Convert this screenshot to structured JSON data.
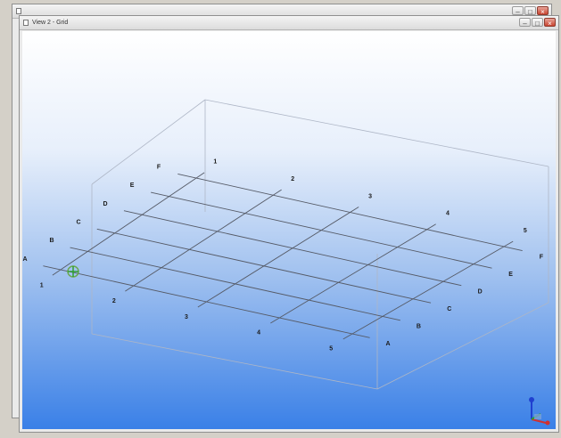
{
  "back_window": {
    "title": ""
  },
  "window": {
    "title": "View 2 - Grid"
  },
  "grid": {
    "letters": [
      "A",
      "B",
      "C",
      "D",
      "E",
      "F"
    ],
    "numbers": [
      "1",
      "2",
      "3",
      "4",
      "5"
    ]
  },
  "colors": {
    "grid_line": "#555a66",
    "box_line": "#aeb6c6",
    "label": "#1a1a1a",
    "axis_x": "#d03030",
    "axis_y": "#30a030",
    "axis_z": "#2040d0"
  },
  "icons": {
    "origin_marker": "axis-origin-icon",
    "triad": "axis-triad-icon"
  }
}
